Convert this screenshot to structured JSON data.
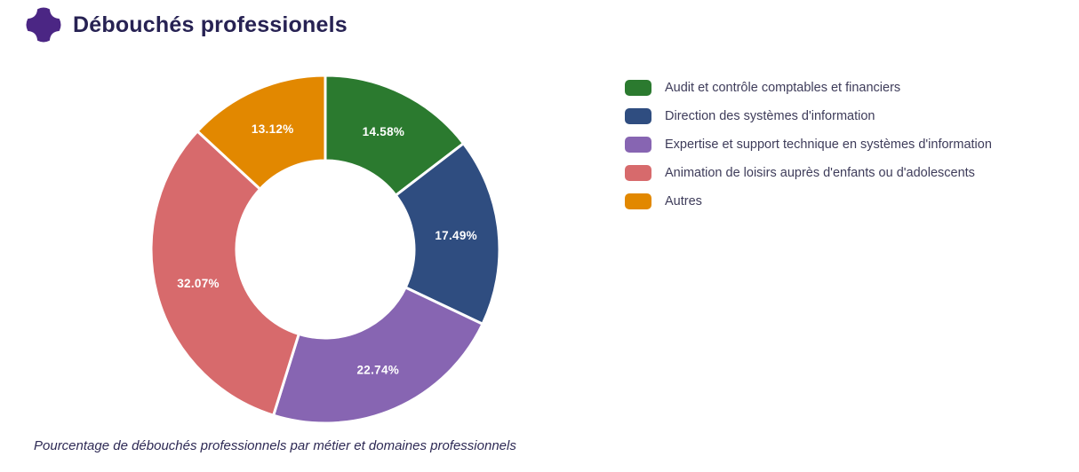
{
  "header": {
    "title": "Débouchés professionels",
    "icon": "four-point-star-icon",
    "accent_color": "#4b2684"
  },
  "chart_data": {
    "type": "pie",
    "subtype": "donut",
    "title": "Débouchés professionels",
    "categories": [
      "Audit et contrôle comptables et financiers",
      "Direction des systèmes d'information",
      "Expertise et support technique en systèmes d'information",
      "Animation de loisirs auprès d'enfants ou d'adolescents",
      "Autres"
    ],
    "values": [
      14.58,
      17.49,
      22.74,
      32.07,
      13.12
    ],
    "labels": [
      "14.58%",
      "17.49%",
      "22.74%",
      "32.07%",
      "13.12%"
    ],
    "colors": [
      "#2b7a2f",
      "#2f4d80",
      "#8765b2",
      "#d76a6c",
      "#e28800"
    ],
    "unit": "%",
    "start_angle_deg": 0,
    "direction": "clockwise",
    "inner_radius_ratio": 0.51,
    "slice_border_color": "#ffffff",
    "legend_position": "right",
    "label_color": "#ffffff"
  },
  "caption": "Pourcentage de débouchés professionnels par métier et domaines professionnels"
}
